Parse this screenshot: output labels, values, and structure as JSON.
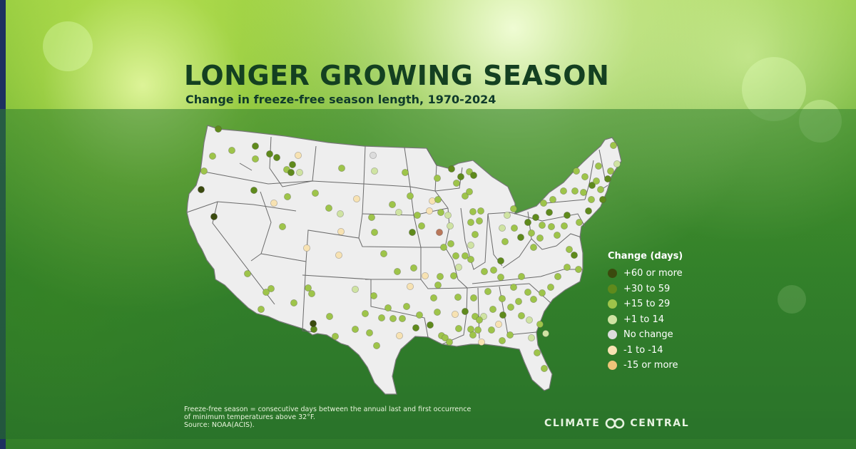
{
  "title": "LONGER GROWING SEASON",
  "subtitle": "Change in freeze-free season length, 1970-2024",
  "legend": {
    "title": "Change (days)",
    "items": [
      {
        "label": "+60 or more",
        "color": "#3b4a0e"
      },
      {
        "label": "+30 to 59",
        "color": "#5f8a1c"
      },
      {
        "label": "+15 to 29",
        "color": "#9ec44a"
      },
      {
        "label": "+1 to 14",
        "color": "#cfe3a2"
      },
      {
        "label": "No change",
        "color": "#dcdcdc"
      },
      {
        "label": "-1 to -14",
        "color": "#f7e2b2"
      },
      {
        "label": "-15 or more",
        "color": "#efc479"
      }
    ]
  },
  "footnote": {
    "line1": "Freeze-free season = consecutive days between the annual last and first occurrence",
    "line2": "of minimum temperatures above 32°F.",
    "line3": "Source: NOAA(ACIS)."
  },
  "brand": {
    "left": "CLIMATE",
    "right": "CENTRAL"
  },
  "colors": {
    "map_fill": "#eeeeee",
    "title": "#144021",
    "sidebar": "#1d3160"
  }
}
